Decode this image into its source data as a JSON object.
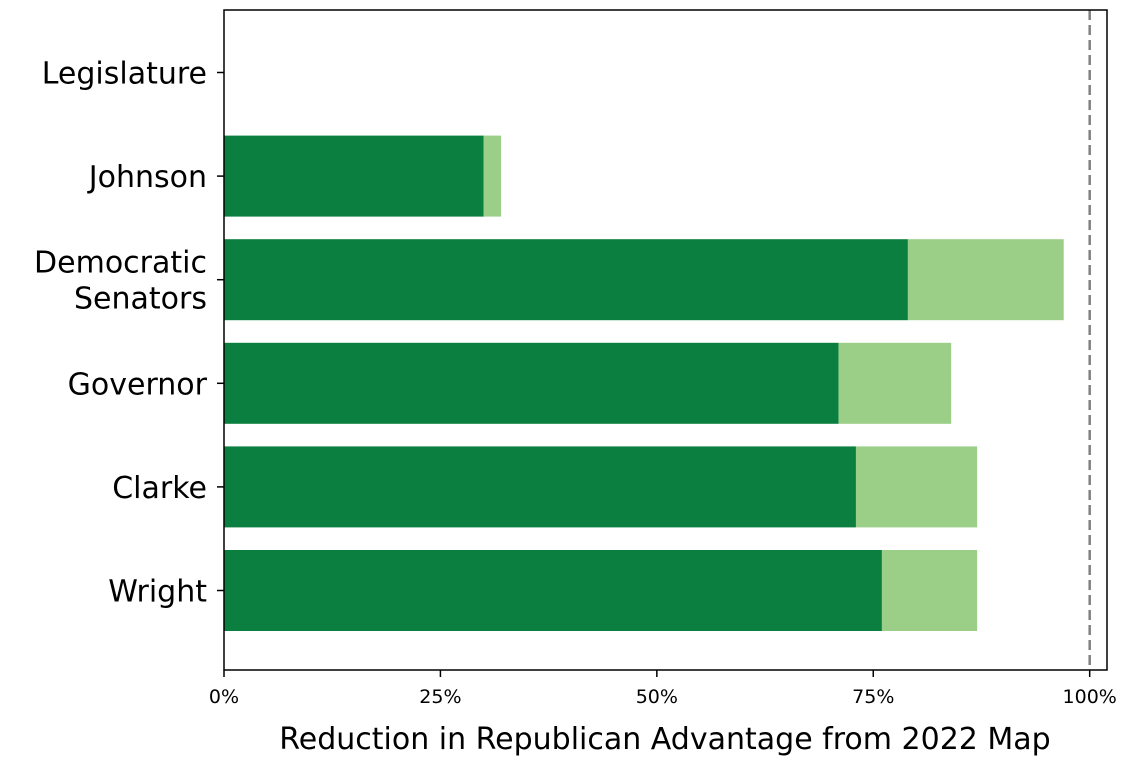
{
  "chart_data": {
    "type": "bar",
    "orientation": "horizontal",
    "stacked": true,
    "categories": [
      "Legislature",
      "Johnson",
      "Democratic\nSenators",
      "Governor",
      "Clarke",
      "Wright"
    ],
    "series": [
      {
        "color": "#0b7f3f",
        "values": [
          0,
          30,
          79,
          71,
          73,
          76
        ]
      },
      {
        "color": "#9bcf88",
        "values": [
          0,
          2,
          18,
          13,
          14,
          11
        ]
      }
    ],
    "xlabel": "Reduction in Republican Advantage from 2022 Map",
    "ylabel": "",
    "title": "",
    "xlim": [
      0,
      102
    ],
    "xticks": [
      0,
      25,
      50,
      75,
      100
    ],
    "xtick_labels": [
      "0%",
      "25%",
      "50%",
      "75%",
      "100%"
    ],
    "reference_line": {
      "x": 100,
      "style": "dashed",
      "color": "#808080"
    },
    "grid": false,
    "legend": false
  }
}
